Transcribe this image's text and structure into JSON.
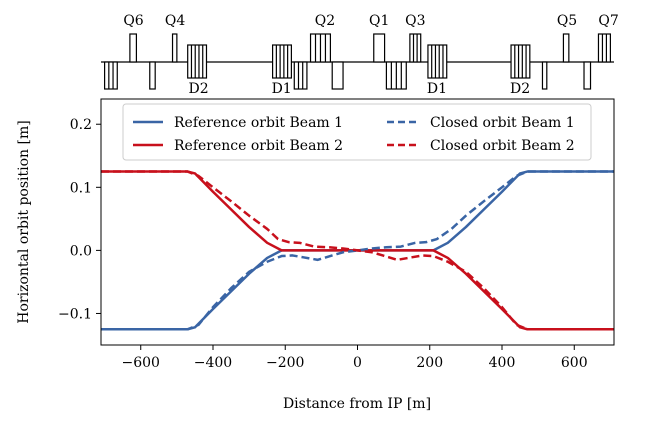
{
  "chart_data": {
    "type": "line",
    "xlabel": "Distance from IP [m]",
    "ylabel": "Horizontal orbit position [m]",
    "xlim": [
      -710,
      710
    ],
    "ylim": [
      -0.15,
      0.24
    ],
    "xticks": [
      -600,
      -400,
      -200,
      0,
      200,
      400,
      600
    ],
    "xtick_labels": [
      "−600",
      "−400",
      "−200",
      "0",
      "200",
      "400",
      "600"
    ],
    "yticks": [
      -0.1,
      0.0,
      0.1,
      0.2
    ],
    "ytick_labels": [
      "−0.1",
      "0.0",
      "0.1",
      "0.2"
    ],
    "legend_position": "top-center",
    "series": [
      {
        "name": "Reference orbit Beam 1",
        "color": "#3a65a5",
        "style": "solid",
        "x": [
          -710,
          -470,
          -450,
          -400,
          -350,
          -300,
          -250,
          -210,
          -190,
          -150,
          -100,
          -50,
          0,
          50,
          100,
          150,
          190,
          210,
          250,
          300,
          350,
          400,
          450,
          470,
          710
        ],
        "y": [
          -0.125,
          -0.125,
          -0.122,
          -0.093,
          -0.065,
          -0.037,
          -0.012,
          0.0,
          0.0,
          0.0,
          0.0,
          0.0,
          0.0,
          0.0,
          0.0,
          0.0,
          0.0,
          0.0,
          0.012,
          0.037,
          0.065,
          0.093,
          0.122,
          0.125,
          0.125
        ]
      },
      {
        "name": "Reference orbit Beam 2",
        "color": "#c8101c",
        "style": "solid",
        "x": [
          -710,
          -470,
          -450,
          -400,
          -350,
          -300,
          -250,
          -210,
          -190,
          -150,
          -100,
          -50,
          0,
          50,
          100,
          150,
          190,
          210,
          250,
          300,
          350,
          400,
          450,
          470,
          710
        ],
        "y": [
          0.125,
          0.125,
          0.122,
          0.093,
          0.065,
          0.037,
          0.012,
          0.0,
          0.0,
          0.0,
          0.0,
          0.0,
          0.0,
          0.0,
          0.0,
          0.0,
          0.0,
          0.0,
          -0.012,
          -0.037,
          -0.065,
          -0.093,
          -0.122,
          -0.125,
          -0.125
        ]
      },
      {
        "name": "Closed orbit Beam 1",
        "color": "#3a65a5",
        "style": "dashed",
        "x": [
          -710,
          -470,
          -440,
          -400,
          -350,
          -300,
          -250,
          -210,
          -180,
          -150,
          -110,
          -70,
          -40,
          0,
          40,
          80,
          120,
          160,
          190,
          220,
          260,
          300,
          350,
          400,
          440,
          470,
          710
        ],
        "y": [
          -0.125,
          -0.125,
          -0.118,
          -0.09,
          -0.06,
          -0.034,
          -0.018,
          -0.009,
          -0.008,
          -0.011,
          -0.015,
          -0.008,
          -0.003,
          0.0,
          0.003,
          0.005,
          0.006,
          0.012,
          0.013,
          0.018,
          0.034,
          0.055,
          0.078,
          0.1,
          0.118,
          0.125,
          0.125
        ]
      },
      {
        "name": "Closed orbit Beam 2",
        "color": "#c8101c",
        "style": "dashed",
        "x": [
          -710,
          -470,
          -440,
          -400,
          -350,
          -300,
          -250,
          -220,
          -190,
          -160,
          -120,
          -80,
          -40,
          0,
          40,
          70,
          110,
          150,
          180,
          210,
          250,
          300,
          350,
          400,
          440,
          470,
          710
        ],
        "y": [
          0.125,
          0.125,
          0.118,
          0.1,
          0.078,
          0.055,
          0.034,
          0.018,
          0.013,
          0.012,
          0.006,
          0.005,
          0.003,
          0.0,
          -0.003,
          -0.008,
          -0.015,
          -0.011,
          -0.008,
          -0.009,
          -0.018,
          -0.034,
          -0.06,
          -0.09,
          -0.118,
          -0.125,
          -0.125
        ]
      }
    ],
    "lattice": {
      "labels": [
        {
          "text": "Q6",
          "x": -620,
          "row": "top"
        },
        {
          "text": "Q4",
          "x": -505,
          "row": "top"
        },
        {
          "text": "Q2",
          "x": -90,
          "row": "top"
        },
        {
          "text": "Q1",
          "x": 60,
          "row": "top"
        },
        {
          "text": "Q3",
          "x": 160,
          "row": "top"
        },
        {
          "text": "Q5",
          "x": 580,
          "row": "top"
        },
        {
          "text": "Q7",
          "x": 695,
          "row": "top"
        },
        {
          "text": "D2",
          "x": -440,
          "row": "bottom"
        },
        {
          "text": "D1",
          "x": -210,
          "row": "bottom"
        },
        {
          "text": "D1",
          "x": 220,
          "row": "bottom"
        },
        {
          "text": "D2",
          "x": 450,
          "row": "bottom"
        }
      ],
      "elements": [
        {
          "kind": "quad",
          "x0": -700,
          "x1": -665,
          "side": "down",
          "stripes": 2
        },
        {
          "kind": "quad",
          "x0": -630,
          "x1": -612,
          "side": "up",
          "stripes": 0
        },
        {
          "kind": "quad",
          "x0": -575,
          "x1": -560,
          "side": "down",
          "stripes": 0
        },
        {
          "kind": "quad",
          "x0": -512,
          "x1": -500,
          "side": "up",
          "stripes": 0
        },
        {
          "kind": "dipole",
          "x0": -470,
          "x1": -418,
          "stripes": 4
        },
        {
          "kind": "dipole",
          "x0": -235,
          "x1": -183,
          "stripes": 4
        },
        {
          "kind": "quad",
          "x0": -175,
          "x1": -140,
          "side": "down",
          "stripes": 2
        },
        {
          "kind": "quad",
          "x0": -130,
          "x1": -75,
          "side": "up",
          "stripes": 3
        },
        {
          "kind": "quad",
          "x0": -70,
          "x1": -40,
          "side": "down",
          "stripes": 0
        },
        {
          "kind": "quad",
          "x0": 45,
          "x1": 75,
          "side": "up",
          "stripes": 0
        },
        {
          "kind": "quad",
          "x0": 80,
          "x1": 135,
          "side": "down",
          "stripes": 3
        },
        {
          "kind": "quad",
          "x0": 145,
          "x1": 175,
          "side": "up",
          "stripes": 2
        },
        {
          "kind": "dipole",
          "x0": 195,
          "x1": 247,
          "stripes": 4
        },
        {
          "kind": "dipole",
          "x0": 425,
          "x1": 477,
          "stripes": 4
        },
        {
          "kind": "quad",
          "x0": 512,
          "x1": 524,
          "side": "down",
          "stripes": 0
        },
        {
          "kind": "quad",
          "x0": 570,
          "x1": 585,
          "side": "up",
          "stripes": 0
        },
        {
          "kind": "quad",
          "x0": 627,
          "x1": 645,
          "side": "down",
          "stripes": 0
        },
        {
          "kind": "quad",
          "x0": 667,
          "x1": 700,
          "side": "up",
          "stripes": 2
        }
      ]
    }
  }
}
